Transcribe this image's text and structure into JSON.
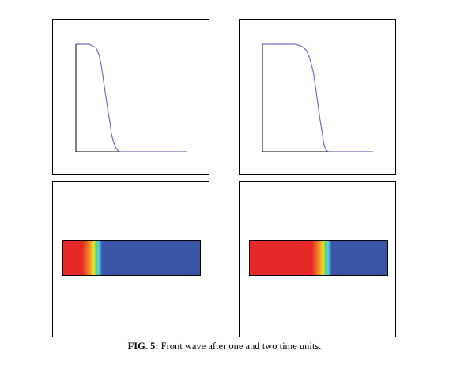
{
  "caption": {
    "label": "FIG.  5:",
    "text": " Front wave after one and two time units."
  },
  "colors": {
    "curve": "#6c6cc4",
    "axis": "#000000",
    "red": "#e8292a",
    "orange": "#f79a2a",
    "yellow": "#efe62a",
    "green": "#5fd03e",
    "cyan": "#52d6e8",
    "blue": "#3a55a7"
  },
  "chart_data": [
    {
      "type": "line",
      "title": "",
      "xlabel": "",
      "ylabel": "",
      "xlim": [
        0,
        1
      ],
      "ylim": [
        0,
        1
      ],
      "grid": false,
      "series": [
        {
          "x": [
            0,
            0.12,
            0.18,
            0.21,
            0.23,
            0.25,
            0.27,
            0.29,
            0.31,
            0.32,
            0.34,
            0.36,
            0.38,
            0.4,
            1.0
          ],
          "y": [
            1.0,
            1.0,
            0.97,
            0.9,
            0.8,
            0.66,
            0.52,
            0.38,
            0.26,
            0.17,
            0.09,
            0.04,
            0.01,
            0.0,
            0.0
          ]
        }
      ]
    },
    {
      "type": "line",
      "title": "",
      "xlabel": "",
      "ylabel": "",
      "xlim": [
        0,
        1
      ],
      "ylim": [
        0,
        1
      ],
      "grid": false,
      "series": [
        {
          "x": [
            0,
            0.3,
            0.36,
            0.4,
            0.43,
            0.46,
            0.48,
            0.5,
            0.52,
            0.54,
            0.55,
            0.56,
            0.58,
            0.6,
            1.0
          ],
          "y": [
            1.0,
            1.0,
            0.98,
            0.94,
            0.86,
            0.74,
            0.6,
            0.45,
            0.3,
            0.18,
            0.1,
            0.05,
            0.01,
            0.0,
            0.0
          ]
        }
      ]
    },
    {
      "type": "heatmap",
      "colormap": "jet",
      "front_position": 0.24
    },
    {
      "type": "heatmap",
      "colormap": "jet",
      "front_position": 0.55
    }
  ]
}
